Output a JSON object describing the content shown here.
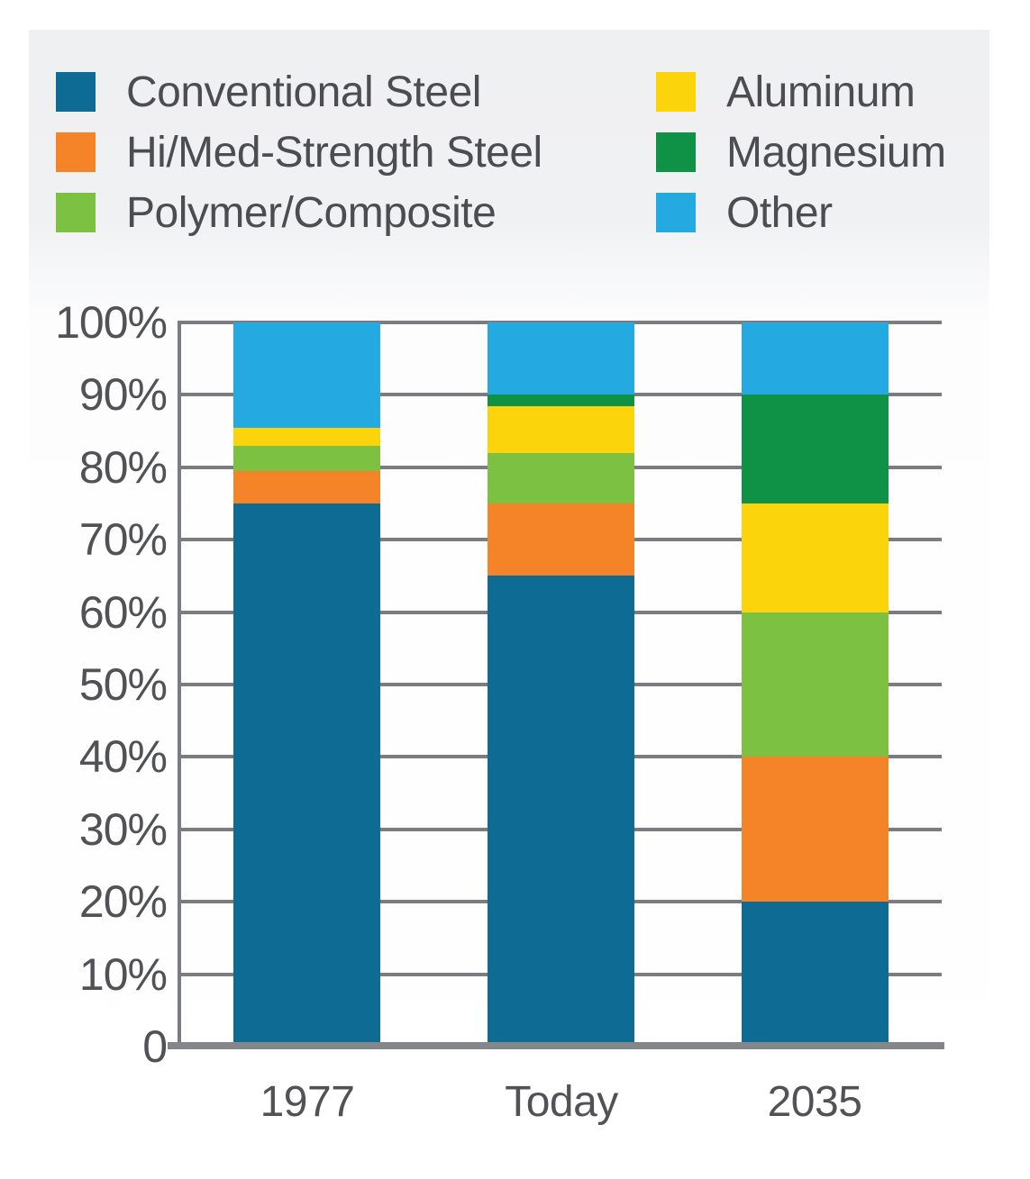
{
  "chart_data": {
    "type": "bar",
    "stacked": true,
    "title": "",
    "xlabel": "",
    "ylabel": "",
    "categories": [
      "1977",
      "Today",
      "2035"
    ],
    "series": [
      {
        "name": "Conventional Steel",
        "color": "#0e6b94",
        "values": [
          75,
          65,
          20
        ]
      },
      {
        "name": "Hi/Med-Strength Steel",
        "color": "#f58328",
        "values": [
          4.5,
          10,
          20
        ]
      },
      {
        "name": "Polymer/Composite",
        "color": "#7cc142",
        "values": [
          3.5,
          7,
          20
        ]
      },
      {
        "name": "Aluminum",
        "color": "#fbd40c",
        "values": [
          2.5,
          6.5,
          15
        ]
      },
      {
        "name": "Magnesium",
        "color": "#0f9245",
        "values": [
          0,
          1.5,
          15
        ]
      },
      {
        "name": "Other",
        "color": "#24a9e1",
        "values": [
          14.5,
          10,
          10
        ]
      }
    ],
    "ylim": [
      0,
      100
    ],
    "ytick_step": 10,
    "ytick_labels": [
      "100%",
      "90%",
      "80%",
      "70%",
      "60%",
      "50%",
      "40%",
      "30%",
      "20%",
      "10%",
      "0"
    ],
    "grid": true,
    "legend_position": "top",
    "legend_columns": [
      [
        "Conventional Steel",
        "Hi/Med-Strength Steel",
        "Polymer/Composite"
      ],
      [
        "Aluminum",
        "Magnesium",
        "Other"
      ]
    ]
  },
  "style_colors": {
    "gridline": "#7b7c7f",
    "axis": "#85868a",
    "text": "#515256",
    "panel_top": "#eff0f2",
    "panel_bottom": "#ffffff"
  }
}
